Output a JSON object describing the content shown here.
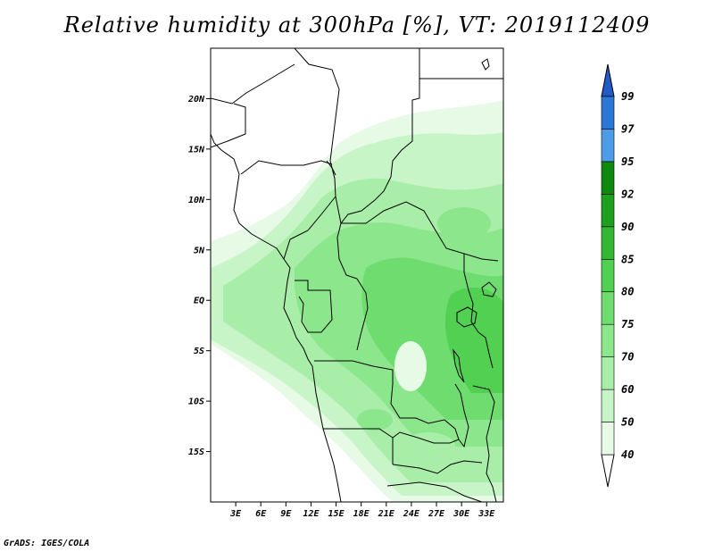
{
  "title": "Relative humidity at 300hPa [%], VT: 2019112409",
  "footer": "GrADS: IGES/COLA",
  "map": {
    "lon_range": [
      0,
      35
    ],
    "lat_range": [
      -20,
      25
    ],
    "lat_ticks": [
      {
        "v": 20,
        "label": "20N"
      },
      {
        "v": 15,
        "label": "15N"
      },
      {
        "v": 10,
        "label": "10N"
      },
      {
        "v": 5,
        "label": "5N"
      },
      {
        "v": 0,
        "label": "EQ"
      },
      {
        "v": -5,
        "label": "5S"
      },
      {
        "v": -10,
        "label": "10S"
      },
      {
        "v": -15,
        "label": "15S"
      }
    ],
    "lon_ticks": [
      {
        "v": 3,
        "label": "3E"
      },
      {
        "v": 6,
        "label": "6E"
      },
      {
        "v": 9,
        "label": "9E"
      },
      {
        "v": 12,
        "label": "12E"
      },
      {
        "v": 15,
        "label": "15E"
      },
      {
        "v": 18,
        "label": "18E"
      },
      {
        "v": 21,
        "label": "21E"
      },
      {
        "v": 24,
        "label": "24E"
      },
      {
        "v": 27,
        "label": "27E"
      },
      {
        "v": 30,
        "label": "30E"
      },
      {
        "v": 33,
        "label": "33E"
      }
    ]
  },
  "colorbar": {
    "levels": [
      "40",
      "50",
      "60",
      "70",
      "75",
      "80",
      "85",
      "90",
      "92",
      "95",
      "97",
      "99"
    ],
    "colors": [
      "#ffffff",
      "#e6fae6",
      "#c8f5c8",
      "#a8eea8",
      "#8ce68c",
      "#6fdc6f",
      "#52d052",
      "#34b834",
      "#1ea01e",
      "#0f8a0f",
      "#4a9de6",
      "#2b78d6",
      "#1f5cc8"
    ]
  }
}
